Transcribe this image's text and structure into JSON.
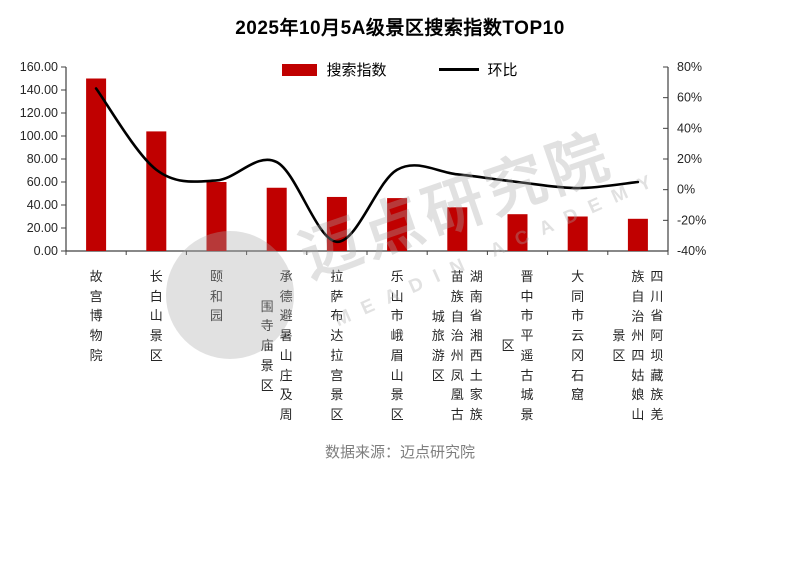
{
  "title": "2025年10月5A级景区搜索指数TOP10",
  "legend": {
    "bar_label": "搜索指数",
    "line_label": "环比"
  },
  "footer": "数据来源：迈点研究院",
  "watermark": {
    "cn": "迈点研究院",
    "en": "MEADIN ACADEMY"
  },
  "colors": {
    "bar": "#c00000",
    "line": "#000000",
    "axis": "#404040",
    "tick_label": "#262626",
    "category_label": "#262626",
    "footer_text": "#7f7f7f"
  },
  "chart_data": {
    "type": "bar",
    "subtype": "combo bar+line, secondary percent axis",
    "title": "2025年10月5A级景区搜索指数TOP10",
    "categories": [
      "故宫博物院",
      "长白山景区",
      "颐和园",
      "承德避暑山庄及周围寺庙景区",
      "拉萨布达拉宫景区",
      "乐山市峨眉山景区",
      "湖南省湘西土家族苗族自治州凤凰古城旅游区",
      "晋中市平遥古城景区",
      "大同市云冈石窟",
      "四川省阿坝藏族羌族自治州四姑娘山景区"
    ],
    "series": [
      {
        "name": "搜索指数",
        "type": "bar",
        "axis": "left",
        "values": [
          150,
          104,
          60,
          55,
          47,
          46,
          38,
          32,
          30,
          28
        ]
      },
      {
        "name": "环比",
        "type": "line",
        "axis": "right",
        "unit": "%",
        "values": [
          66,
          13,
          6,
          18,
          -34,
          13,
          10,
          5,
          1,
          5
        ]
      }
    ],
    "left_axis": {
      "min": 0,
      "max": 160,
      "step": 20,
      "decimals": 2
    },
    "right_axis": {
      "min": -40,
      "max": 80,
      "step": 20,
      "suffix": "%"
    },
    "grid": false,
    "legend_position": "top"
  }
}
